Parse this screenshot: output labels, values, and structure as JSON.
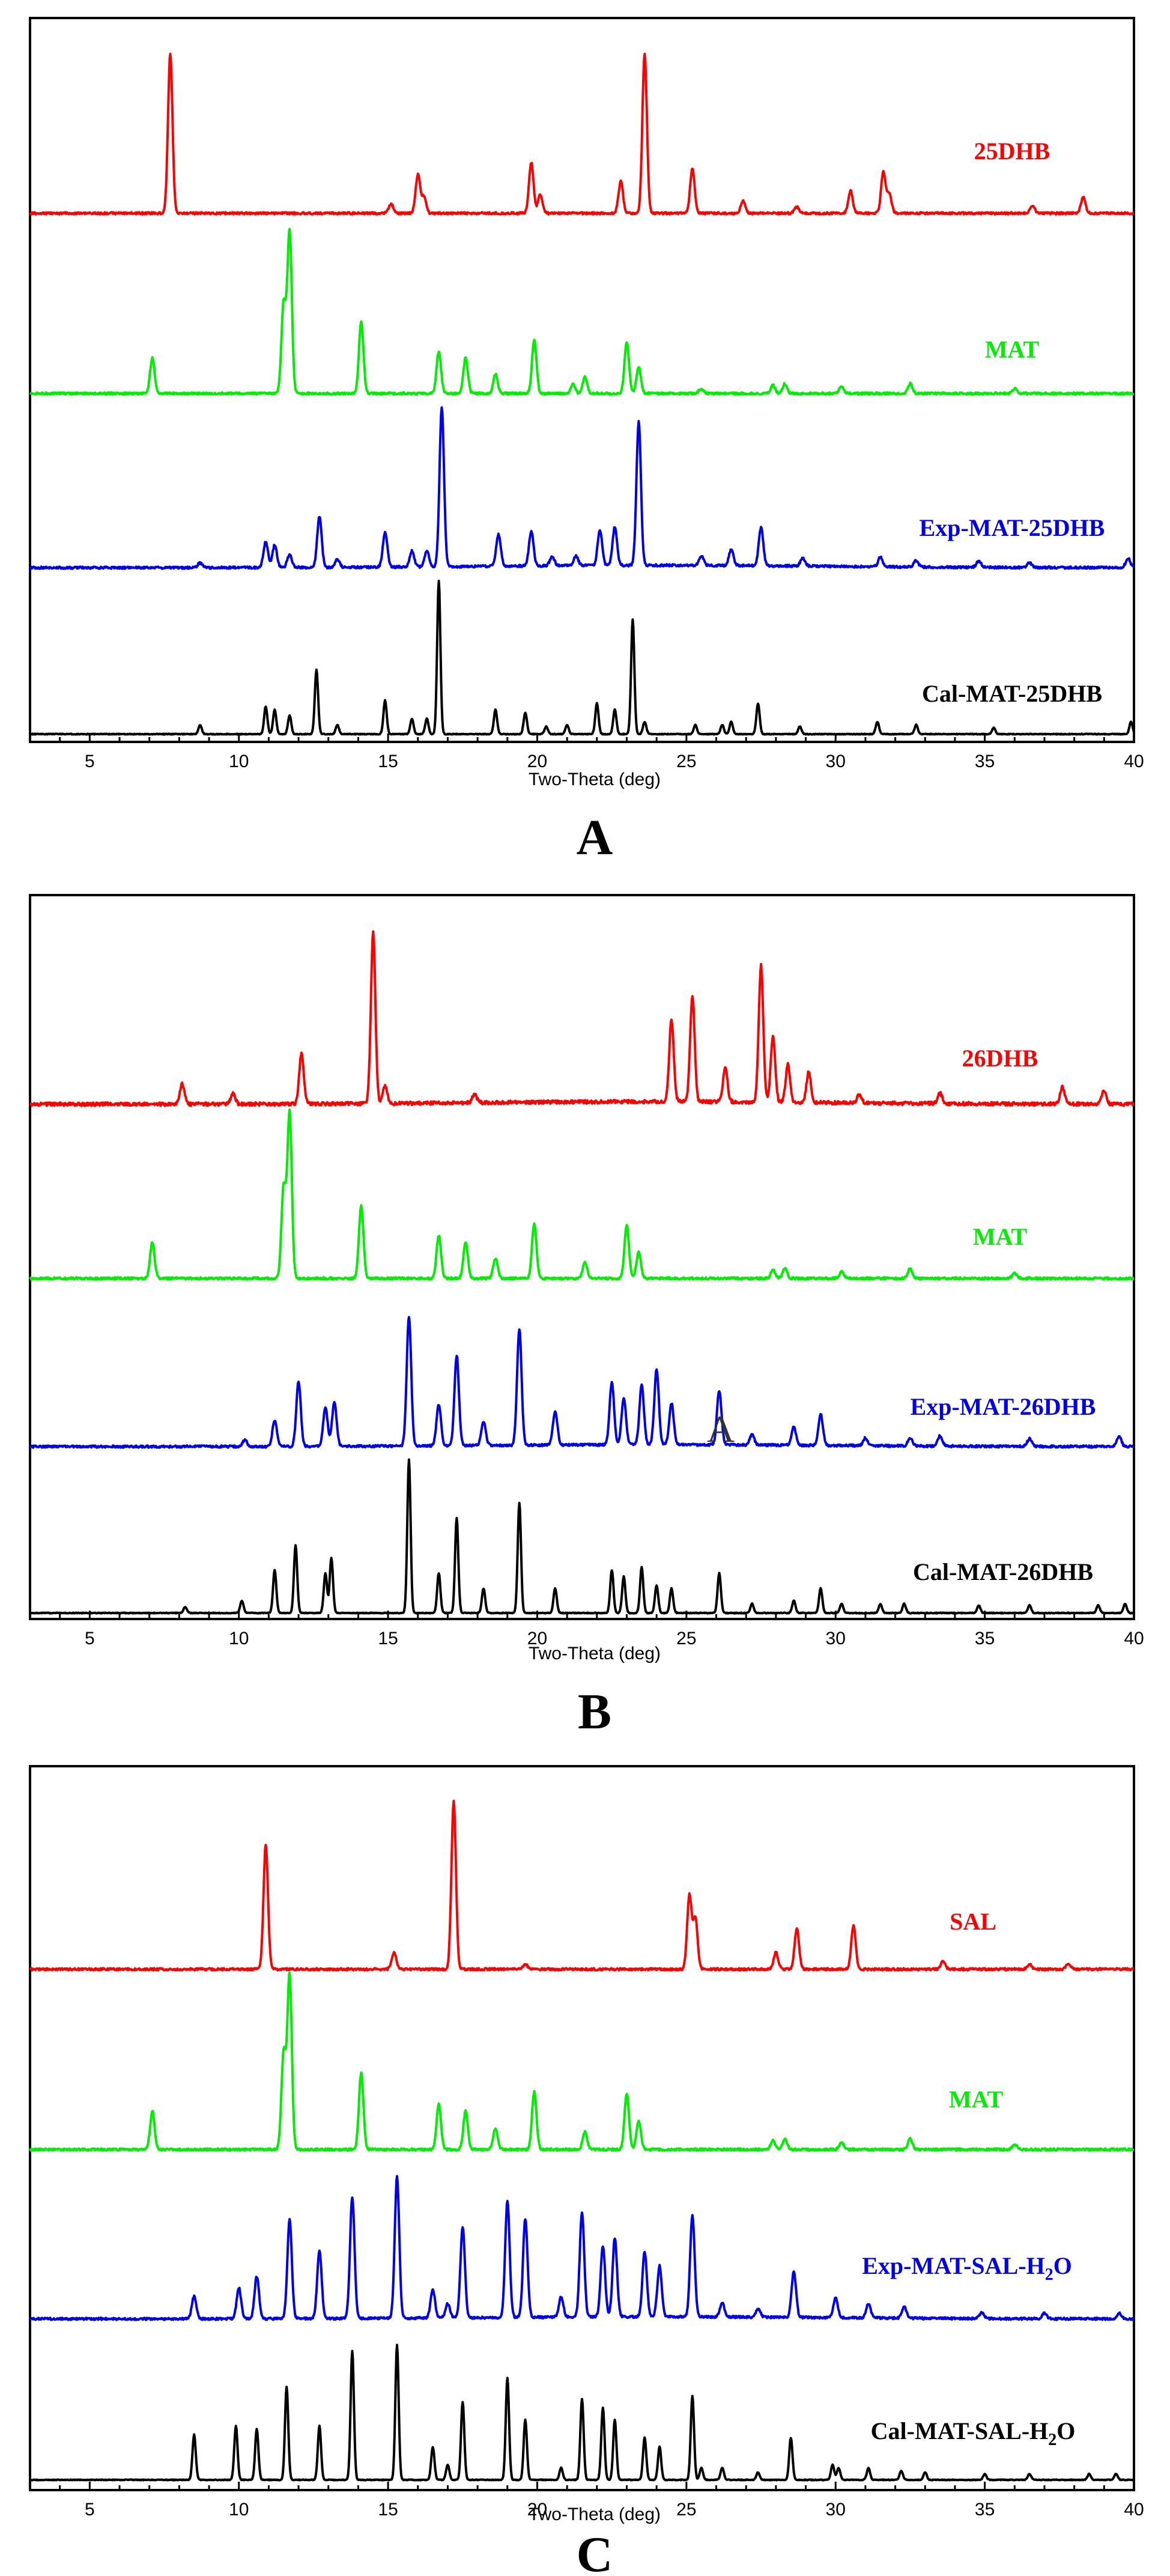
{
  "chart_data": [
    {
      "type": "line",
      "panel": "A",
      "xlabel": "Two-Theta (deg)",
      "xlim": [
        3,
        40
      ],
      "xticks": [
        5,
        10,
        15,
        20,
        25,
        30,
        35,
        40
      ],
      "series": [
        {
          "name": "25DHB",
          "color": "#ff0000",
          "peaks": [
            [
              7.7,
              100
            ],
            [
              15.1,
              6
            ],
            [
              16.0,
              24
            ],
            [
              16.2,
              10
            ],
            [
              19.8,
              32
            ],
            [
              20.1,
              12
            ],
            [
              22.8,
              20
            ],
            [
              23.6,
              100
            ],
            [
              25.2,
              28
            ],
            [
              26.9,
              8
            ],
            [
              28.7,
              4
            ],
            [
              30.5,
              14
            ],
            [
              31.6,
              26
            ],
            [
              31.8,
              12
            ],
            [
              36.6,
              5
            ],
            [
              38.3,
              10
            ]
          ]
        },
        {
          "name": "MAT",
          "color": "#00ee00",
          "peaks": [
            [
              7.1,
              22
            ],
            [
              11.5,
              55
            ],
            [
              11.7,
              100
            ],
            [
              14.1,
              44
            ],
            [
              16.7,
              26
            ],
            [
              17.6,
              22
            ],
            [
              18.6,
              12
            ],
            [
              19.9,
              33
            ],
            [
              21.2,
              6
            ],
            [
              21.6,
              10
            ],
            [
              23.0,
              32
            ],
            [
              23.4,
              16
            ],
            [
              25.5,
              3
            ],
            [
              27.9,
              5
            ],
            [
              28.3,
              6
            ],
            [
              30.2,
              4
            ],
            [
              32.5,
              6
            ],
            [
              36.0,
              3
            ]
          ]
        },
        {
          "name": "Exp-MAT-25DHB",
          "color": "#0000ee",
          "peaks": [
            [
              8.7,
              3
            ],
            [
              10.9,
              16
            ],
            [
              11.2,
              14
            ],
            [
              11.7,
              8
            ],
            [
              12.7,
              32
            ],
            [
              13.3,
              5
            ],
            [
              14.9,
              22
            ],
            [
              15.8,
              10
            ],
            [
              16.3,
              10
            ],
            [
              16.8,
              100
            ],
            [
              18.7,
              20
            ],
            [
              19.8,
              22
            ],
            [
              20.5,
              6
            ],
            [
              21.3,
              6
            ],
            [
              22.1,
              22
            ],
            [
              22.6,
              24
            ],
            [
              23.4,
              90
            ],
            [
              25.5,
              6
            ],
            [
              26.5,
              10
            ],
            [
              27.5,
              24
            ],
            [
              28.9,
              5
            ],
            [
              31.5,
              6
            ],
            [
              32.7,
              4
            ],
            [
              34.8,
              4
            ],
            [
              36.5,
              3
            ],
            [
              39.8,
              6
            ]
          ]
        },
        {
          "name": "Cal-MAT-25DHB",
          "color": "#000000",
          "peaks": [
            [
              8.7,
              6
            ],
            [
              10.9,
              18
            ],
            [
              11.2,
              16
            ],
            [
              11.7,
              12
            ],
            [
              12.6,
              42
            ],
            [
              13.3,
              6
            ],
            [
              14.9,
              22
            ],
            [
              15.8,
              10
            ],
            [
              16.3,
              10
            ],
            [
              16.7,
              100
            ],
            [
              18.6,
              16
            ],
            [
              19.6,
              14
            ],
            [
              20.3,
              5
            ],
            [
              21.0,
              6
            ],
            [
              22.0,
              20
            ],
            [
              22.6,
              16
            ],
            [
              23.2,
              75
            ],
            [
              23.6,
              8
            ],
            [
              25.3,
              6
            ],
            [
              26.2,
              6
            ],
            [
              26.5,
              8
            ],
            [
              27.4,
              20
            ],
            [
              28.8,
              5
            ],
            [
              31.4,
              8
            ],
            [
              32.7,
              6
            ],
            [
              35.3,
              4
            ],
            [
              39.9,
              8
            ]
          ]
        }
      ]
    },
    {
      "type": "line",
      "panel": "B",
      "xlabel": "Two-Theta (deg)",
      "xlim": [
        3,
        40
      ],
      "xticks": [
        5,
        10,
        15,
        20,
        25,
        30,
        35,
        40
      ],
      "series": [
        {
          "name": "26DHB",
          "color": "#ff0000",
          "peaks": [
            [
              8.1,
              12
            ],
            [
              9.8,
              6
            ],
            [
              12.1,
              30
            ],
            [
              14.5,
              100
            ],
            [
              14.9,
              10
            ],
            [
              17.9,
              5
            ],
            [
              24.5,
              48
            ],
            [
              25.2,
              62
            ],
            [
              26.3,
              20
            ],
            [
              27.5,
              80
            ],
            [
              27.9,
              38
            ],
            [
              28.4,
              22
            ],
            [
              29.1,
              18
            ],
            [
              30.8,
              5
            ],
            [
              33.5,
              6
            ],
            [
              37.6,
              10
            ],
            [
              39.0,
              8
            ]
          ]
        },
        {
          "name": "MAT",
          "color": "#00ee00",
          "peaks": [
            [
              7.1,
              22
            ],
            [
              11.5,
              55
            ],
            [
              11.7,
              100
            ],
            [
              14.1,
              44
            ],
            [
              16.7,
              26
            ],
            [
              17.6,
              22
            ],
            [
              18.6,
              12
            ],
            [
              19.9,
              33
            ],
            [
              21.6,
              10
            ],
            [
              23.0,
              32
            ],
            [
              23.4,
              16
            ],
            [
              27.9,
              5
            ],
            [
              28.3,
              6
            ],
            [
              30.2,
              4
            ],
            [
              32.5,
              6
            ],
            [
              36.0,
              3
            ]
          ]
        },
        {
          "name": "Exp-MAT-26DHB",
          "color": "#0000ee",
          "peaks": [
            [
              10.2,
              5
            ],
            [
              11.2,
              20
            ],
            [
              12.0,
              50
            ],
            [
              12.9,
              30
            ],
            [
              13.2,
              34
            ],
            [
              15.7,
              100
            ],
            [
              16.7,
              32
            ],
            [
              17.3,
              70
            ],
            [
              18.2,
              18
            ],
            [
              19.4,
              90
            ],
            [
              20.6,
              26
            ],
            [
              22.5,
              48
            ],
            [
              22.9,
              36
            ],
            [
              23.5,
              46
            ],
            [
              24.0,
              58
            ],
            [
              24.5,
              32
            ],
            [
              26.1,
              42
            ],
            [
              27.2,
              8
            ],
            [
              28.6,
              14
            ],
            [
              29.5,
              24
            ],
            [
              31.0,
              6
            ],
            [
              32.5,
              6
            ],
            [
              33.5,
              8
            ],
            [
              36.5,
              6
            ],
            [
              39.5,
              8
            ]
          ]
        },
        {
          "name": "Cal-MAT-26DHB",
          "color": "#000000",
          "peaks": [
            [
              8.2,
              4
            ],
            [
              10.1,
              8
            ],
            [
              11.2,
              28
            ],
            [
              11.9,
              44
            ],
            [
              12.9,
              26
            ],
            [
              13.1,
              36
            ],
            [
              15.7,
              100
            ],
            [
              16.7,
              26
            ],
            [
              17.3,
              62
            ],
            [
              18.2,
              16
            ],
            [
              19.4,
              72
            ],
            [
              20.6,
              16
            ],
            [
              22.5,
              28
            ],
            [
              22.9,
              24
            ],
            [
              23.5,
              30
            ],
            [
              24.0,
              18
            ],
            [
              24.5,
              16
            ],
            [
              26.1,
              26
            ],
            [
              27.2,
              6
            ],
            [
              28.6,
              8
            ],
            [
              29.5,
              16
            ],
            [
              30.2,
              6
            ],
            [
              31.5,
              6
            ],
            [
              32.3,
              6
            ],
            [
              34.8,
              5
            ],
            [
              36.5,
              5
            ],
            [
              38.8,
              5
            ],
            [
              39.7,
              6
            ]
          ]
        }
      ]
    },
    {
      "type": "line",
      "panel": "C",
      "xlabel": "Two-Theta (deg)",
      "xlim": [
        3,
        40
      ],
      "xticks": [
        5,
        10,
        15,
        20,
        25,
        30,
        35,
        40
      ],
      "series": [
        {
          "name": "SAL",
          "color": "#ff0000",
          "peaks": [
            [
              10.9,
              74
            ],
            [
              15.2,
              10
            ],
            [
              17.2,
              100
            ],
            [
              19.6,
              3
            ],
            [
              25.1,
              44
            ],
            [
              25.3,
              30
            ],
            [
              28.0,
              10
            ],
            [
              28.7,
              24
            ],
            [
              30.6,
              26
            ],
            [
              33.6,
              5
            ],
            [
              36.5,
              3
            ],
            [
              37.8,
              3
            ]
          ]
        },
        {
          "name": "MAT",
          "color": "#00ee00",
          "peaks": [
            [
              7.1,
              22
            ],
            [
              11.5,
              55
            ],
            [
              11.7,
              100
            ],
            [
              14.1,
              44
            ],
            [
              16.7,
              26
            ],
            [
              17.6,
              22
            ],
            [
              18.6,
              12
            ],
            [
              19.9,
              33
            ],
            [
              21.6,
              10
            ],
            [
              23.0,
              32
            ],
            [
              23.4,
              16
            ],
            [
              27.9,
              5
            ],
            [
              28.3,
              6
            ],
            [
              30.2,
              4
            ],
            [
              32.5,
              6
            ],
            [
              36.0,
              3
            ]
          ]
        },
        {
          "name": "Exp-MAT-SAL-H2O",
          "color": "#0000ee",
          "peaks": [
            [
              8.5,
              16
            ],
            [
              10.0,
              22
            ],
            [
              10.6,
              30
            ],
            [
              11.7,
              70
            ],
            [
              12.7,
              48
            ],
            [
              13.8,
              86
            ],
            [
              15.3,
              100
            ],
            [
              16.5,
              20
            ],
            [
              17.0,
              10
            ],
            [
              17.5,
              64
            ],
            [
              19.0,
              82
            ],
            [
              19.6,
              70
            ],
            [
              20.8,
              14
            ],
            [
              21.5,
              74
            ],
            [
              22.2,
              50
            ],
            [
              22.6,
              56
            ],
            [
              23.6,
              46
            ],
            [
              24.1,
              36
            ],
            [
              25.2,
              72
            ],
            [
              26.2,
              10
            ],
            [
              27.4,
              6
            ],
            [
              28.6,
              32
            ],
            [
              30.0,
              14
            ],
            [
              31.1,
              10
            ],
            [
              32.3,
              8
            ],
            [
              34.9,
              4
            ],
            [
              37.0,
              4
            ],
            [
              39.5,
              4
            ]
          ]
        },
        {
          "name": "Cal-MAT-SAL-H2O",
          "color": "#000000",
          "peaks": [
            [
              8.5,
              30
            ],
            [
              9.9,
              36
            ],
            [
              10.6,
              34
            ],
            [
              11.6,
              62
            ],
            [
              12.7,
              36
            ],
            [
              13.8,
              86
            ],
            [
              15.3,
              90
            ],
            [
              16.5,
              22
            ],
            [
              17.0,
              10
            ],
            [
              17.5,
              52
            ],
            [
              19.0,
              68
            ],
            [
              19.6,
              40
            ],
            [
              20.8,
              8
            ],
            [
              21.5,
              54
            ],
            [
              22.2,
              48
            ],
            [
              22.6,
              40
            ],
            [
              23.6,
              28
            ],
            [
              24.1,
              22
            ],
            [
              25.2,
              56
            ],
            [
              25.5,
              8
            ],
            [
              26.2,
              8
            ],
            [
              27.4,
              5
            ],
            [
              28.5,
              28
            ],
            [
              29.9,
              10
            ],
            [
              30.1,
              8
            ],
            [
              31.1,
              8
            ],
            [
              32.2,
              6
            ],
            [
              33.0,
              5
            ],
            [
              35.0,
              4
            ],
            [
              36.5,
              4
            ],
            [
              38.5,
              4
            ],
            [
              39.4,
              4
            ]
          ]
        }
      ]
    }
  ],
  "panel_letters": [
    "A",
    "B",
    "C"
  ],
  "stray_mark": "A",
  "series_labels": {
    "a": [
      "25DHB",
      "MAT",
      "Exp-MAT-25DHB",
      "Cal-MAT-25DHB"
    ],
    "b": [
      "26DHB",
      "MAT",
      "Exp-MAT-26DHB",
      "Cal-MAT-26DHB"
    ],
    "c": [
      {
        "main": "SAL",
        "sub": ""
      },
      {
        "main": "MAT",
        "sub": ""
      },
      {
        "main": "Exp-MAT-SAL-H",
        "sub": "2",
        "tail": "O"
      },
      {
        "main": "Cal-MAT-SAL-H",
        "sub": "2",
        "tail": "O"
      }
    ]
  }
}
